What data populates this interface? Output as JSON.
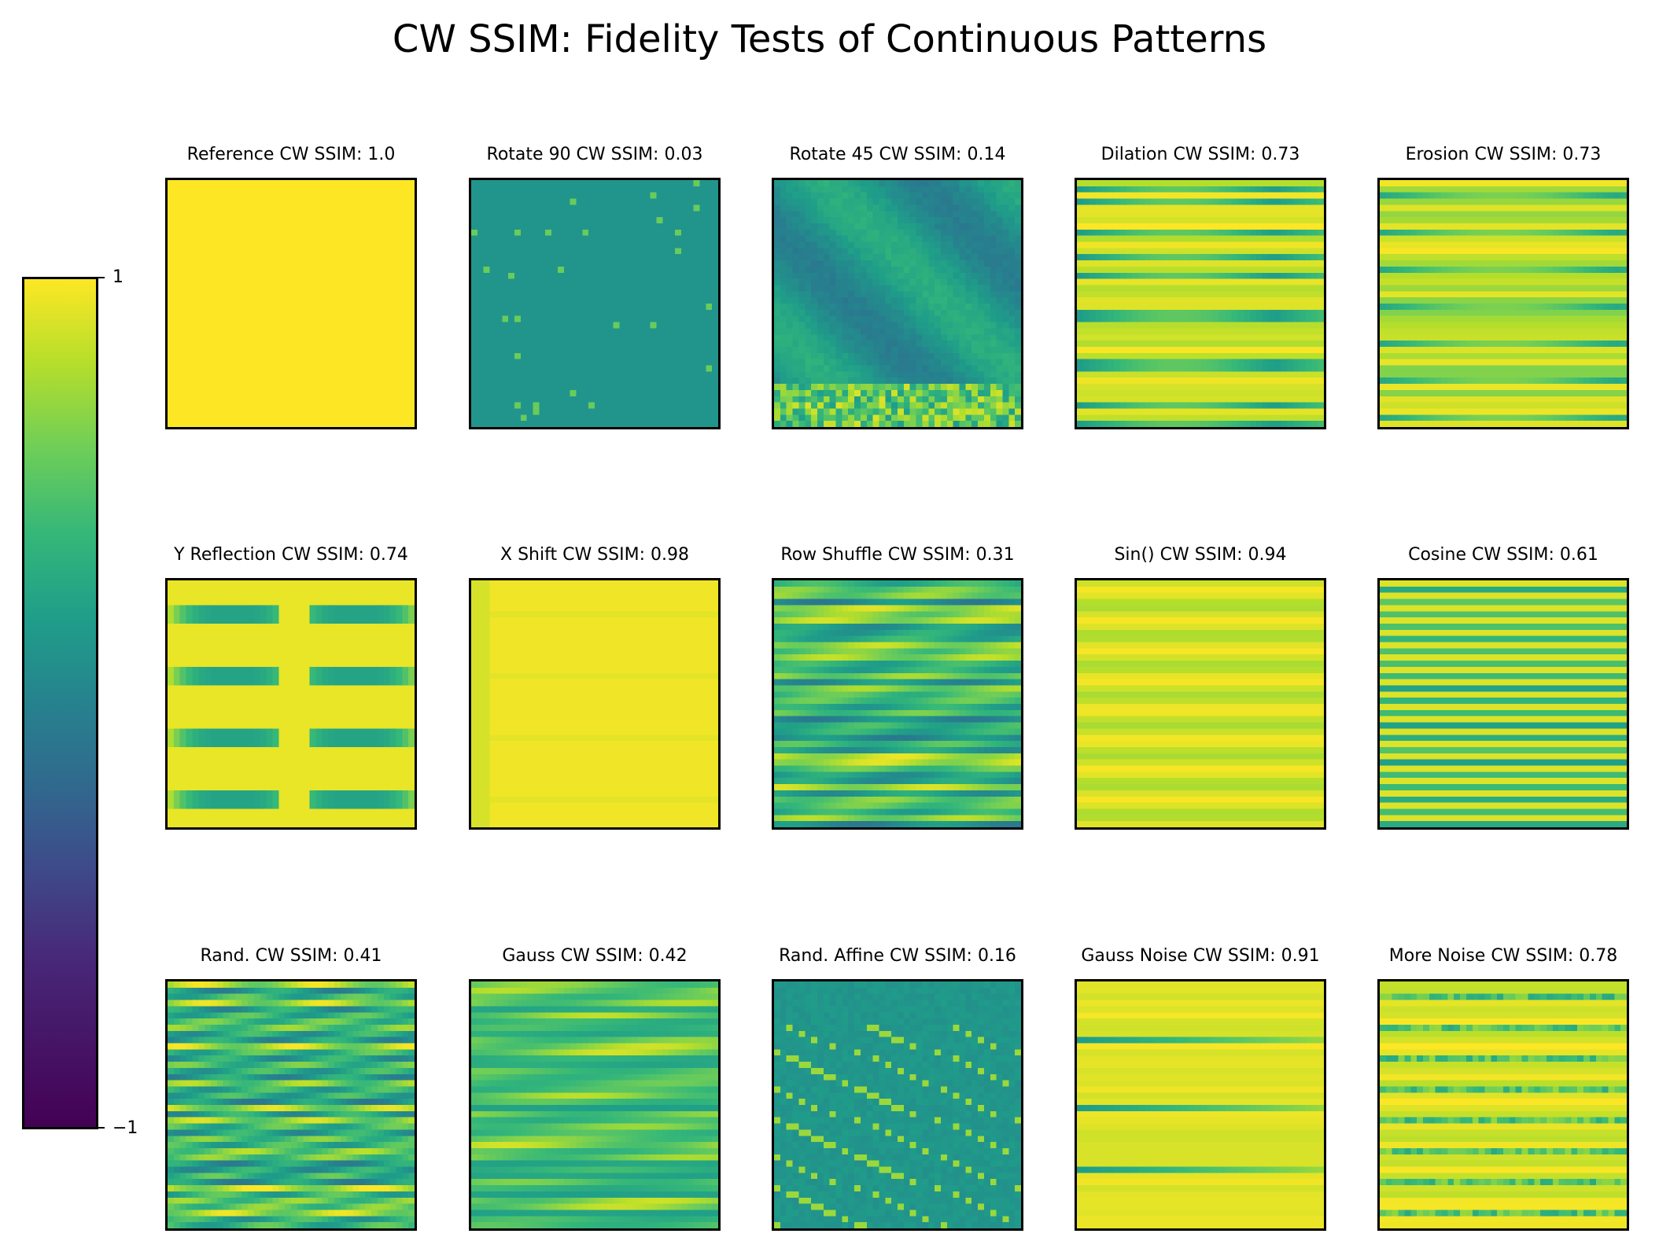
{
  "title": "CW SSIM: Fidelity Tests of Continuous Patterns",
  "chart_data": {
    "type": "heatmap",
    "title": "CW SSIM: Fidelity Tests of Continuous Patterns",
    "colormap": "viridis",
    "colorbar": {
      "max_label": "1",
      "min_label": "−1",
      "vmin": -1,
      "vmax": 1,
      "placement": "left"
    },
    "grid": false,
    "layout": "3 rows x 5 columns",
    "panels": [
      {
        "name": "Reference",
        "score": "1.0",
        "title": "Reference  CW SSIM: 1.0",
        "pattern": "uniform"
      },
      {
        "name": "Rotate 90",
        "score": "0.03",
        "title": "Rotate 90  CW SSIM: 0.03",
        "pattern": "rot90"
      },
      {
        "name": "Rotate 45",
        "score": "0.14",
        "title": "Rotate 45  CW SSIM: 0.14",
        "pattern": "rot45"
      },
      {
        "name": "Dilation",
        "score": "0.73",
        "title": "Dilation  CW SSIM: 0.73",
        "pattern": "dilation"
      },
      {
        "name": "Erosion",
        "score": "0.73",
        "title": "Erosion  CW SSIM: 0.73",
        "pattern": "erosion"
      },
      {
        "name": "Y Reflection",
        "score": "0.74",
        "title": "Y Reflection  CW SSIM: 0.74",
        "pattern": "yreflect"
      },
      {
        "name": "X Shift",
        "score": "0.98",
        "title": "X Shift  CW SSIM: 0.98",
        "pattern": "xshift"
      },
      {
        "name": "Row Shuffle",
        "score": "0.31",
        "title": "Row Shuffle  CW SSIM: 0.31",
        "pattern": "rowshuffle"
      },
      {
        "name": "Sin()",
        "score": "0.94",
        "title": "Sin()  CW SSIM: 0.94",
        "pattern": "sin"
      },
      {
        "name": "Cosine",
        "score": "0.61",
        "title": "Cosine  CW SSIM: 0.61",
        "pattern": "cosine"
      },
      {
        "name": "Rand.",
        "score": "0.41",
        "title": "Rand.  CW SSIM: 0.41",
        "pattern": "rand"
      },
      {
        "name": "Gauss",
        "score": "0.42",
        "title": "Gauss  CW SSIM: 0.42",
        "pattern": "gauss"
      },
      {
        "name": "Rand. Affine",
        "score": "0.16",
        "title": "Rand. Affine  CW SSIM: 0.16",
        "pattern": "affine"
      },
      {
        "name": "Gauss Noise",
        "score": "0.91",
        "title": "Gauss Noise  CW SSIM: 0.91",
        "pattern": "gaussnoise"
      },
      {
        "name": "More Noise",
        "score": "0.78",
        "title": "More Noise  CW SSIM: 0.78",
        "pattern": "morenoise"
      }
    ]
  }
}
